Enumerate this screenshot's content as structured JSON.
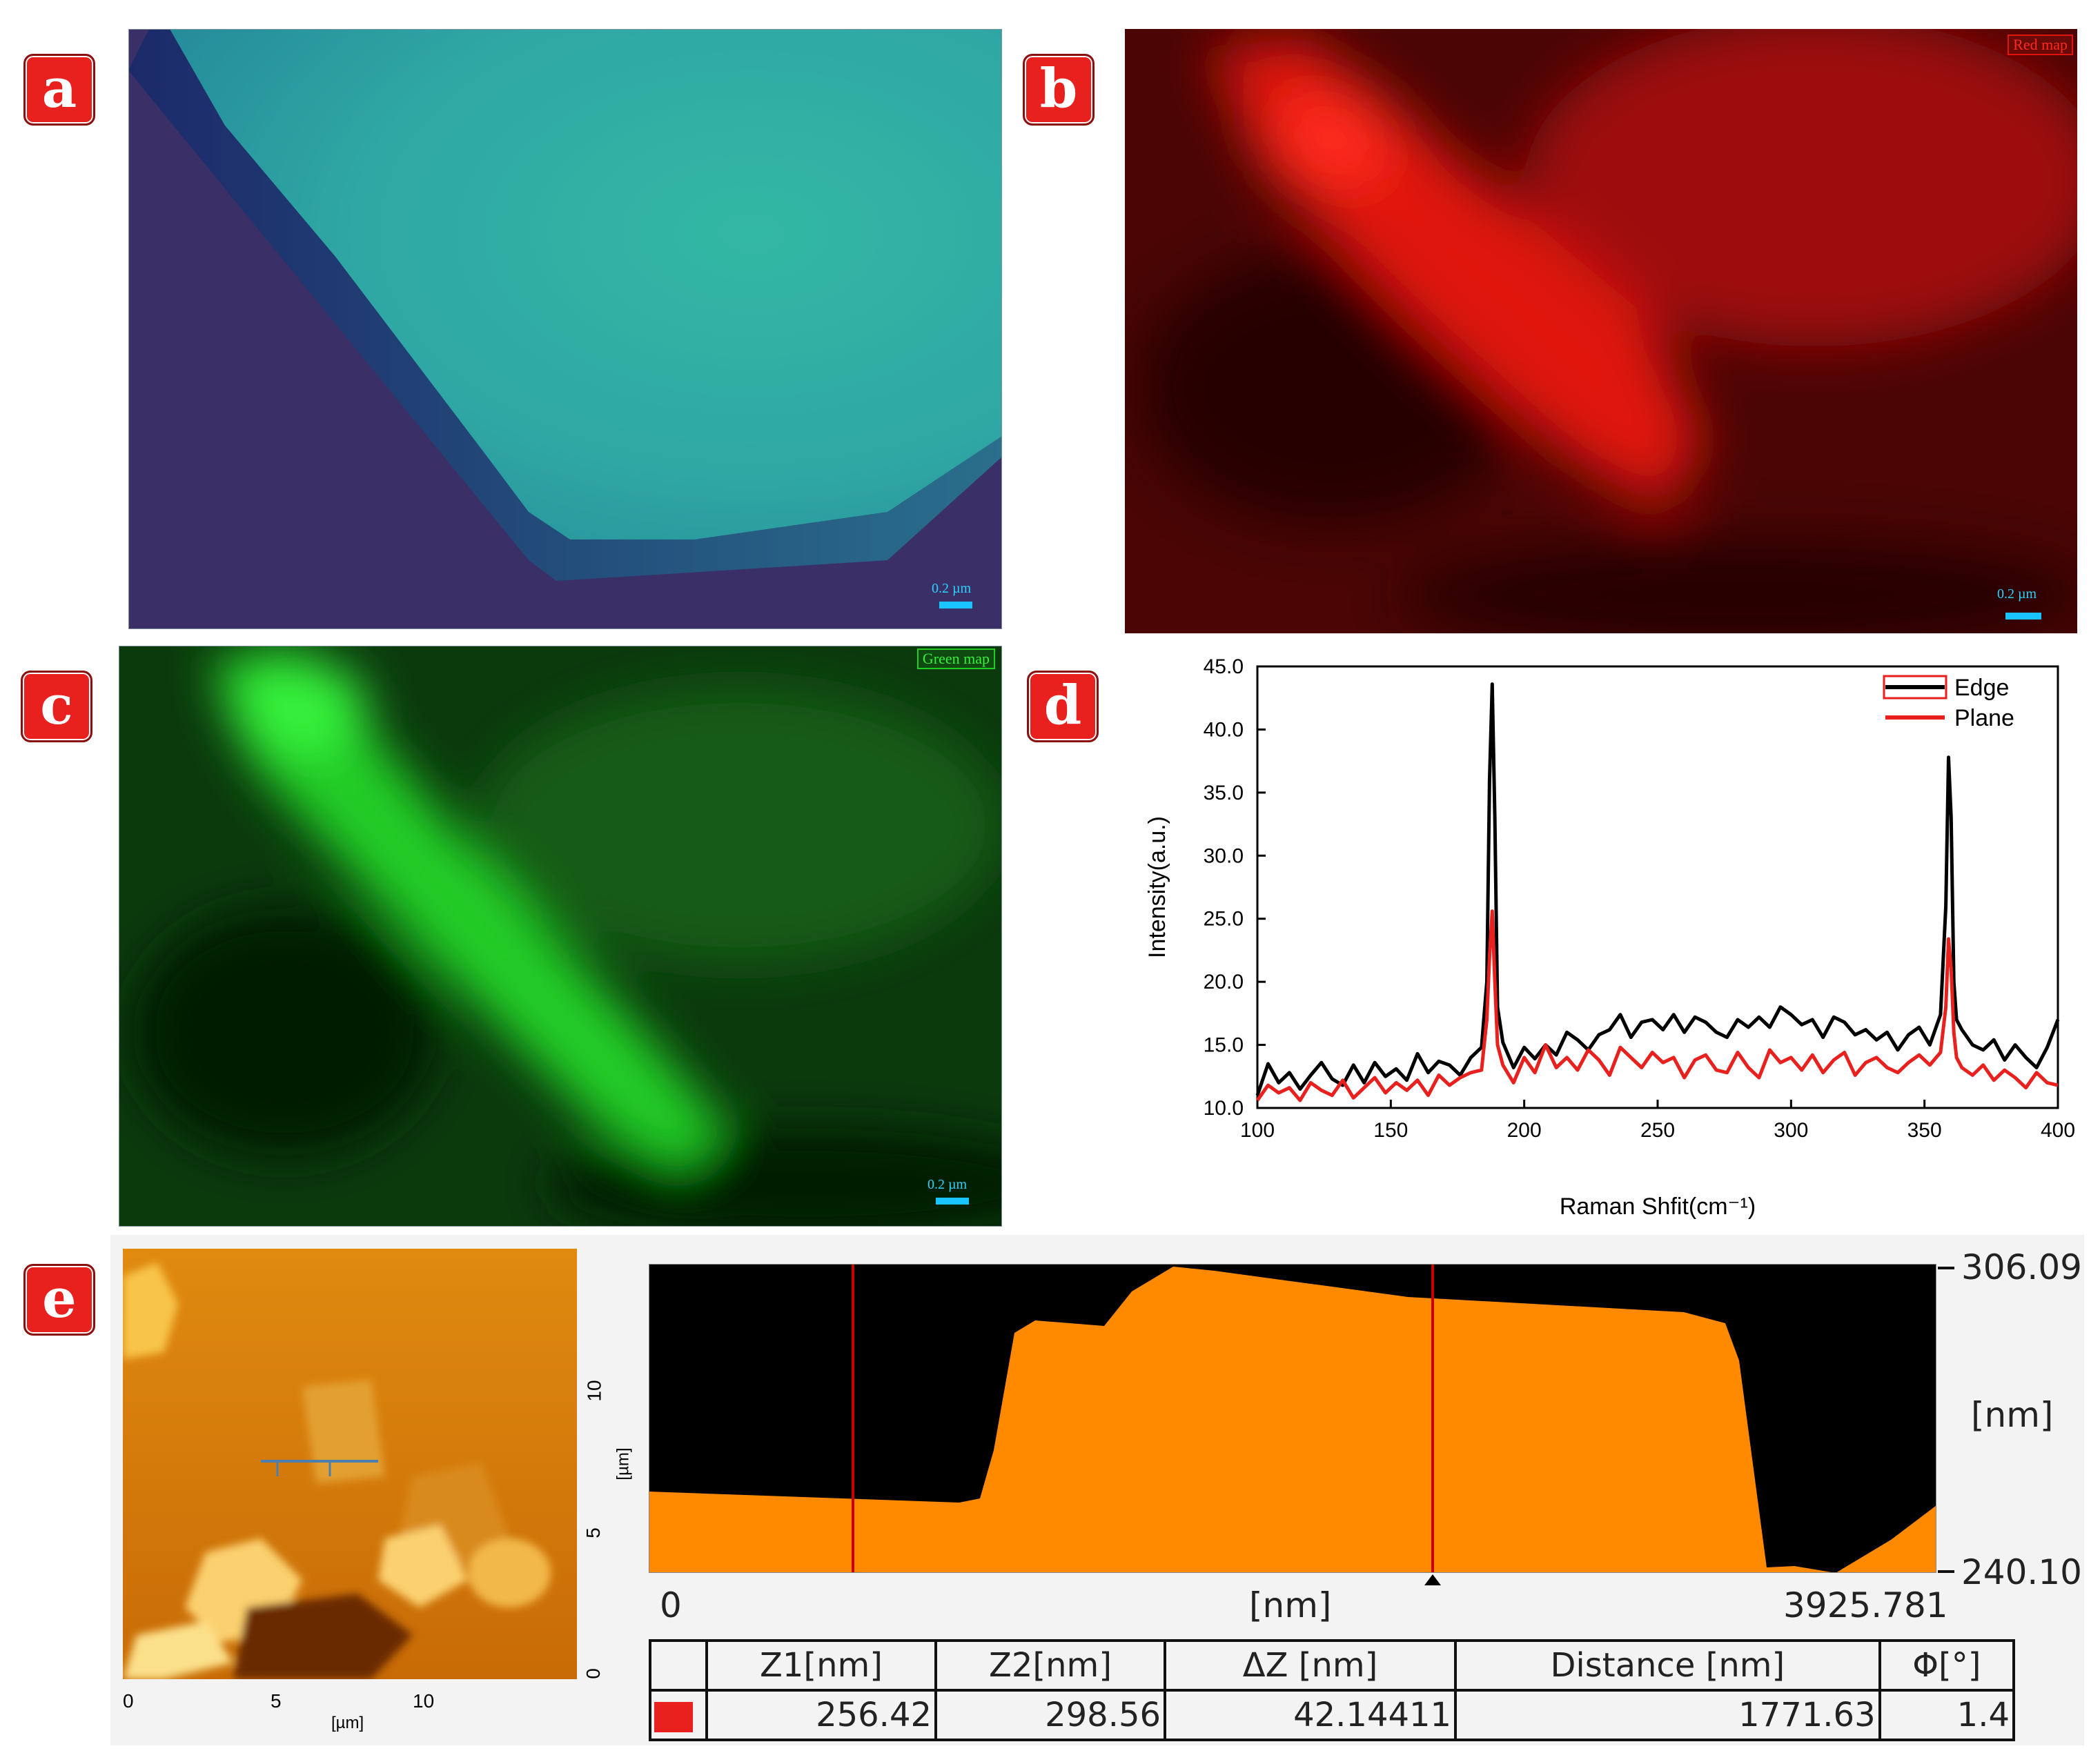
{
  "panels": {
    "a": {
      "tag": "a",
      "scale_label": "0.2 µm"
    },
    "b": {
      "tag": "b",
      "map_label": "Red map",
      "scale_label": "0.2 µm"
    },
    "c": {
      "tag": "c",
      "map_label": "Green map",
      "scale_label": "0.2 µm"
    },
    "d": {
      "tag": "d"
    },
    "e": {
      "tag": "e",
      "afm_x_label": "[µm]",
      "afm_y_label": "[µm]",
      "afm_x_ticks": [
        "0",
        "5",
        "10"
      ],
      "afm_y_ticks": [
        "0",
        "5",
        "10"
      ],
      "profile_y_top": "306.09",
      "profile_y_bottom": "240.10",
      "profile_y_unit": "[nm]",
      "profile_x_start": "0",
      "profile_x_unit": "[nm]",
      "profile_x_end": "3925.781",
      "table": {
        "headers": [
          "",
          "Z1[nm]",
          "Z2[nm]",
          "ΔZ [nm]",
          "Distance [nm]",
          "Φ[°]"
        ],
        "row": [
          "",
          "256.42",
          "298.56",
          "42.14411",
          "1771.63",
          "1.4"
        ]
      }
    }
  },
  "colors": {
    "tag_bg": "#e8201e",
    "edge": "#000000",
    "plane": "#e8201e",
    "profile_fill": "#ff8a00"
  },
  "chart_data": {
    "type": "line",
    "xlabel": "Raman Shfit(cm⁻¹)",
    "ylabel": "Intensity(a.u.)",
    "xlim": [
      100,
      400
    ],
    "ylim": [
      10,
      45
    ],
    "x_ticks": [
      "100",
      "150",
      "200",
      "250",
      "300",
      "350",
      "400"
    ],
    "y_ticks": [
      "10.0",
      "15.0",
      "20.0",
      "25.0",
      "30.0",
      "35.0",
      "40.0",
      "45.0"
    ],
    "legend_position": "top-right",
    "series": [
      {
        "name": "Edge",
        "color": "#000000",
        "x": [
          100,
          104,
          108,
          112,
          116,
          120,
          124,
          128,
          132,
          136,
          140,
          144,
          148,
          152,
          156,
          160,
          164,
          168,
          172,
          176,
          180,
          184,
          186,
          187,
          188,
          189,
          190,
          192,
          196,
          200,
          204,
          208,
          212,
          216,
          220,
          224,
          228,
          232,
          236,
          240,
          244,
          248,
          252,
          256,
          260,
          264,
          268,
          272,
          276,
          280,
          284,
          288,
          292,
          296,
          300,
          304,
          308,
          312,
          316,
          320,
          324,
          328,
          332,
          336,
          340,
          344,
          348,
          352,
          356,
          358,
          359,
          360,
          361,
          362,
          364,
          368,
          372,
          376,
          380,
          384,
          388,
          392,
          396,
          400
        ],
        "y": [
          11.0,
          13.5,
          12.0,
          12.8,
          11.5,
          12.6,
          13.6,
          12.3,
          11.8,
          13.4,
          12.0,
          13.6,
          12.5,
          13.1,
          12.2,
          14.3,
          12.8,
          13.7,
          13.4,
          12.6,
          14.0,
          14.8,
          20.0,
          36.0,
          43.6,
          33.0,
          18.0,
          15.2,
          13.2,
          14.8,
          13.9,
          15.0,
          14.2,
          16.0,
          15.4,
          14.6,
          15.8,
          16.2,
          17.4,
          15.6,
          16.8,
          17.0,
          16.2,
          17.4,
          16.0,
          17.2,
          16.8,
          16.0,
          15.6,
          17.0,
          16.4,
          17.2,
          16.4,
          18.0,
          17.4,
          16.6,
          17.0,
          15.6,
          17.2,
          16.8,
          15.8,
          16.2,
          15.4,
          16.0,
          14.6,
          15.8,
          16.4,
          15.0,
          17.4,
          26.0,
          37.8,
          33.0,
          20.0,
          17.0,
          16.2,
          15.0,
          14.6,
          15.4,
          13.8,
          15.0,
          14.0,
          13.2,
          14.8,
          17.0
        ]
      },
      {
        "name": "Plane",
        "color": "#e8201e",
        "x": [
          100,
          104,
          108,
          112,
          116,
          120,
          124,
          128,
          132,
          136,
          140,
          144,
          148,
          152,
          156,
          160,
          164,
          168,
          172,
          176,
          180,
          184,
          186,
          187,
          188,
          189,
          190,
          192,
          196,
          200,
          204,
          208,
          212,
          216,
          220,
          224,
          228,
          232,
          236,
          240,
          244,
          248,
          252,
          256,
          260,
          264,
          268,
          272,
          276,
          280,
          284,
          288,
          292,
          296,
          300,
          304,
          308,
          312,
          316,
          320,
          324,
          328,
          332,
          336,
          340,
          344,
          348,
          352,
          356,
          358,
          359,
          360,
          361,
          362,
          364,
          368,
          372,
          376,
          380,
          384,
          388,
          392,
          396,
          400
        ],
        "y": [
          10.6,
          11.8,
          11.2,
          11.6,
          10.6,
          12.0,
          11.4,
          11.0,
          12.2,
          10.8,
          11.6,
          12.4,
          11.2,
          12.0,
          11.4,
          12.2,
          11.0,
          12.6,
          11.8,
          12.4,
          12.8,
          13.0,
          17.0,
          22.0,
          25.6,
          20.0,
          15.0,
          13.4,
          12.0,
          14.0,
          12.8,
          15.0,
          13.2,
          14.0,
          13.0,
          14.6,
          13.8,
          12.6,
          14.8,
          14.0,
          13.2,
          14.4,
          13.6,
          14.0,
          12.4,
          13.8,
          14.2,
          13.0,
          12.8,
          14.4,
          13.2,
          12.4,
          14.6,
          13.6,
          14.0,
          13.0,
          14.2,
          12.8,
          13.8,
          14.4,
          12.6,
          13.6,
          14.0,
          13.2,
          12.8,
          13.6,
          14.2,
          13.4,
          14.4,
          18.0,
          23.4,
          21.0,
          16.0,
          14.0,
          13.2,
          12.6,
          13.4,
          12.2,
          13.0,
          12.4,
          11.6,
          12.8,
          12.0,
          11.8
        ]
      }
    ]
  }
}
